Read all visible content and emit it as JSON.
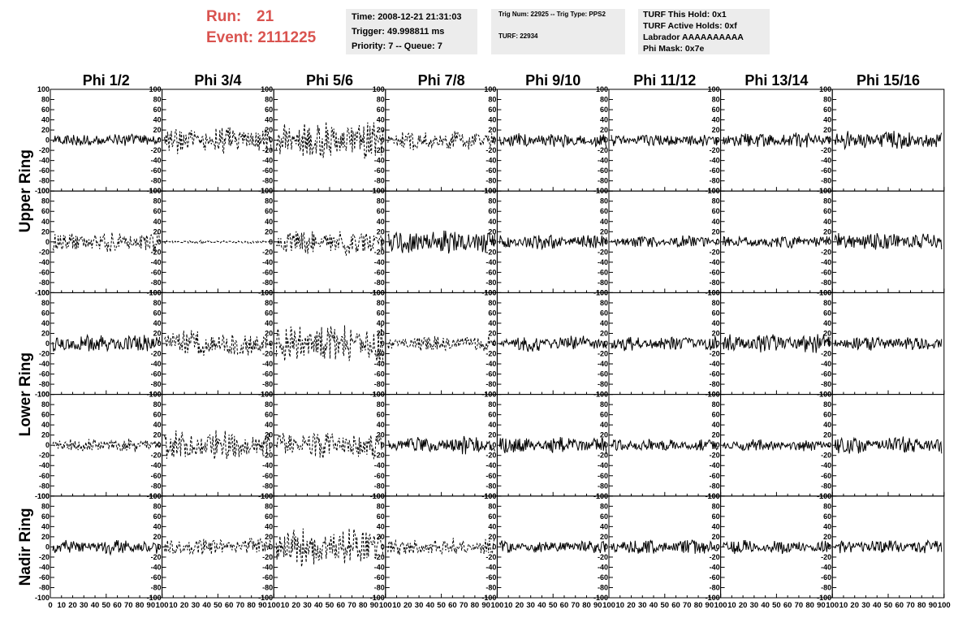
{
  "header": {
    "run_label": "Run:",
    "run_value": "21",
    "event_label": "Event:",
    "event_value": "2111225"
  },
  "info_box_1": {
    "time": "Time: 2008-12-21 21:31:03",
    "trigger": "Trigger: 49.998811 ms",
    "priority": "Priority: 7 -- Queue: 7"
  },
  "info_box_2": {
    "trig": "Trig Num: 22925 -- Trig Type: PPS2",
    "turf": "TURF: 22934"
  },
  "info_box_3": {
    "hold": "TURF This Hold: 0x1",
    "active": "TURF Active Holds: 0xf",
    "labrador": "Labrador AAAAAAAAAA",
    "phimask": "Phi Mask: 0x7e"
  },
  "colors": {
    "header_accent": "#d9534f",
    "info_bg": "#ececec",
    "trace": "#000000"
  },
  "chart_data": {
    "type": "line",
    "columns": [
      "Phi 1/2",
      "Phi 3/4",
      "Phi 5/6",
      "Phi 7/8",
      "Phi 9/10",
      "Phi 11/12",
      "Phi 13/14",
      "Phi 15/16"
    ],
    "ring_labels": [
      "Upper Ring",
      "Lower Ring",
      "Nadir Ring"
    ],
    "rows": 5,
    "ylim": [
      -100,
      100
    ],
    "y_ticks": [
      100,
      80,
      60,
      40,
      20,
      0,
      -20,
      -40,
      -60,
      -80,
      -100
    ],
    "xlim": [
      0,
      100
    ],
    "x_tick_labels": [
      "0",
      "10",
      "20",
      "30",
      "40",
      "50",
      "60",
      "70",
      "80",
      "90",
      "100"
    ],
    "panels": [
      [
        {
          "amplitude": 14,
          "dashed": false
        },
        {
          "amplitude": 28,
          "dashed": true
        },
        {
          "amplitude": 40,
          "dashed": true
        },
        {
          "amplitude": 20,
          "dashed": true
        },
        {
          "amplitude": 15,
          "dashed": false
        },
        {
          "amplitude": 13,
          "dashed": false
        },
        {
          "amplitude": 16,
          "dashed": false
        },
        {
          "amplitude": 20,
          "dashed": false
        }
      ],
      [
        {
          "amplitude": 20,
          "dashed": true
        },
        {
          "amplitude": 3,
          "dashed": true
        },
        {
          "amplitude": 28,
          "dashed": true
        },
        {
          "amplitude": 24,
          "dashed": false
        },
        {
          "amplitude": 15,
          "dashed": false
        },
        {
          "amplitude": 13,
          "dashed": false
        },
        {
          "amplitude": 13,
          "dashed": false
        },
        {
          "amplitude": 18,
          "dashed": false
        }
      ],
      [
        {
          "amplitude": 18,
          "dashed": false
        },
        {
          "amplitude": 28,
          "dashed": true
        },
        {
          "amplitude": 42,
          "dashed": true
        },
        {
          "amplitude": 16,
          "dashed": true
        },
        {
          "amplitude": 16,
          "dashed": false
        },
        {
          "amplitude": 15,
          "dashed": false
        },
        {
          "amplitude": 20,
          "dashed": false
        },
        {
          "amplitude": 15,
          "dashed": false
        }
      ],
      [
        {
          "amplitude": 14,
          "dashed": true
        },
        {
          "amplitude": 32,
          "dashed": true
        },
        {
          "amplitude": 28,
          "dashed": true
        },
        {
          "amplitude": 18,
          "dashed": false
        },
        {
          "amplitude": 18,
          "dashed": false
        },
        {
          "amplitude": 13,
          "dashed": false
        },
        {
          "amplitude": 12,
          "dashed": false
        },
        {
          "amplitude": 18,
          "dashed": false
        }
      ],
      [
        {
          "amplitude": 15,
          "dashed": false
        },
        {
          "amplitude": 18,
          "dashed": true
        },
        {
          "amplitude": 40,
          "dashed": true
        },
        {
          "amplitude": 18,
          "dashed": true
        },
        {
          "amplitude": 13,
          "dashed": false
        },
        {
          "amplitude": 16,
          "dashed": false
        },
        {
          "amplitude": 14,
          "dashed": false
        },
        {
          "amplitude": 14,
          "dashed": false
        }
      ]
    ]
  }
}
